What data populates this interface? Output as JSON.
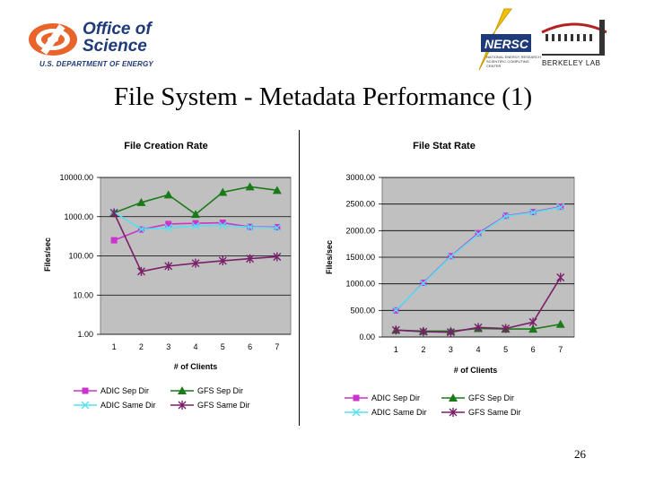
{
  "header": {
    "doe_logo": {
      "line1": "Office of",
      "line2": "Science",
      "line3": "U.S. DEPARTMENT OF ENERGY"
    },
    "nersc_logo": {
      "name": "NERSC",
      "tagline_1": "NATIONAL ENERGY RESEARCH",
      "tagline_2": "SCIENTIFIC COMPUTING CENTER"
    },
    "lbl_logo": {
      "name": "BERKELEY LAB"
    }
  },
  "slide": {
    "title": "File System - Metadata Performance (1)",
    "page_number": "26"
  },
  "colors": {
    "plot_bg": "#c0c0c0",
    "adic_sep": "#cc33cc",
    "gfs_sep": "#1a7a1a",
    "adic_same": "#55e0f0",
    "gfs_same": "#7a1f6a"
  },
  "chart_data": [
    {
      "type": "line",
      "title": "File Creation Rate",
      "xlabel": "# of Clients",
      "ylabel": "Files/sec",
      "yscale": "log",
      "ylim": [
        1,
        10000
      ],
      "yticks": [
        "10000.00",
        "1000.00",
        "100.00",
        "10.00",
        "1.00"
      ],
      "categories": [
        "1",
        "2",
        "3",
        "4",
        "5",
        "6",
        "7"
      ],
      "grid": true,
      "legend_position": "bottom",
      "series": [
        {
          "name": "ADIC Sep Dir",
          "values": [
            250,
            470,
            650,
            680,
            700,
            550,
            540
          ]
        },
        {
          "name": "GFS Sep Dir",
          "values": [
            1250,
            2300,
            3600,
            1150,
            4200,
            5800,
            4700
          ]
        },
        {
          "name": "ADIC Same Dir",
          "values": [
            1300,
            480,
            520,
            580,
            600,
            540,
            520
          ]
        },
        {
          "name": "GFS Same Dir",
          "values": [
            1250,
            40,
            55,
            65,
            75,
            85,
            95
          ]
        }
      ]
    },
    {
      "type": "line",
      "title": "File Stat Rate",
      "xlabel": "# of Clients",
      "ylabel": "Files/sec",
      "yscale": "linear",
      "ylim": [
        0,
        3000
      ],
      "yticks": [
        "3000.00",
        "2500.00",
        "2000.00",
        "1500.00",
        "1000.00",
        "500.00",
        "0.00"
      ],
      "categories": [
        "1",
        "2",
        "3",
        "4",
        "5",
        "6",
        "7"
      ],
      "grid": true,
      "legend_position": "bottom",
      "series": [
        {
          "name": "ADIC Sep Dir",
          "values": [
            500,
            1020,
            1520,
            1950,
            2280,
            2350,
            2450
          ]
        },
        {
          "name": "GFS Sep Dir",
          "values": [
            130,
            110,
            110,
            160,
            150,
            150,
            240
          ]
        },
        {
          "name": "ADIC Same Dir",
          "values": [
            510,
            1010,
            1510,
            1930,
            2270,
            2340,
            2440
          ]
        },
        {
          "name": "GFS Same Dir",
          "values": [
            130,
            100,
            90,
            180,
            160,
            280,
            1120
          ]
        }
      ]
    }
  ]
}
